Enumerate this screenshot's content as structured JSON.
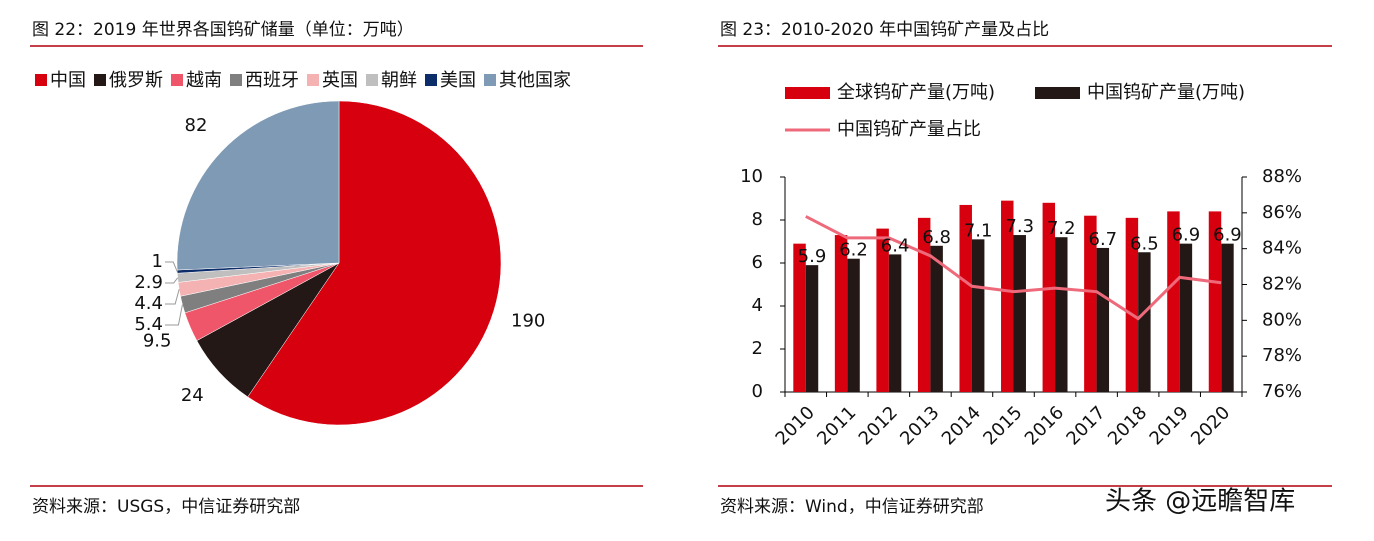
{
  "chart_data": [
    {
      "type": "pie",
      "title": "图 22：2019 年世界各国钨矿储量（单位：万吨）",
      "source": "资料来源：USGS，中信证券研究部",
      "categories": [
        "中国",
        "俄罗斯",
        "越南",
        "西班牙",
        "英国",
        "朝鲜",
        "美国",
        "其他国家"
      ],
      "values": [
        190,
        24,
        9.5,
        5.4,
        4.4,
        2.9,
        1,
        82
      ],
      "colors": [
        "#d7000f",
        "#231815",
        "#f0566a",
        "#7f7f7f",
        "#f5b2b2",
        "#bfbfbf",
        "#0c2d69",
        "#7f9ab4"
      ],
      "legend": "top"
    },
    {
      "type": "bar",
      "title": "图 23：2010-2020 年中国钨矿产量及占比",
      "source": "资料来源：Wind，中信证券研究部",
      "categories": [
        "2010",
        "2011",
        "2012",
        "2013",
        "2014",
        "2015",
        "2016",
        "2017",
        "2018",
        "2019",
        "2020"
      ],
      "series": [
        {
          "name": "全球钨矿产量(万吨)",
          "color": "#d7000f",
          "type": "bar",
          "values": [
            6.9,
            7.3,
            7.6,
            8.1,
            8.7,
            8.9,
            8.8,
            8.2,
            8.1,
            8.4,
            8.4
          ]
        },
        {
          "name": "中国钨矿产量(万吨)",
          "color": "#231815",
          "type": "bar",
          "values": [
            5.9,
            6.2,
            6.4,
            6.8,
            7.1,
            7.3,
            7.2,
            6.7,
            6.5,
            6.9,
            6.9
          ],
          "data_labels": true
        },
        {
          "name": "中国钨矿产量占比",
          "color": "#ee6a7b",
          "type": "line",
          "axis": "y2",
          "values": [
            85.8,
            84.6,
            84.6,
            83.6,
            81.9,
            81.6,
            81.8,
            81.6,
            80.1,
            82.4,
            82.1
          ]
        }
      ],
      "ylim": [
        0,
        10
      ],
      "yticks": [
        0,
        2,
        4,
        6,
        8,
        10
      ],
      "y2lim": [
        76,
        88
      ],
      "y2ticks": [
        {
          "value": 76,
          "label": "76%"
        },
        {
          "value": 78,
          "label": "78%"
        },
        {
          "value": 80,
          "label": "80%"
        },
        {
          "value": 82,
          "label": "82%"
        },
        {
          "value": 84,
          "label": "84%"
        },
        {
          "value": 86,
          "label": "86%"
        },
        {
          "value": 88,
          "label": "88%"
        }
      ],
      "legend": "top"
    }
  ],
  "watermark": "头条 @远瞻智库"
}
